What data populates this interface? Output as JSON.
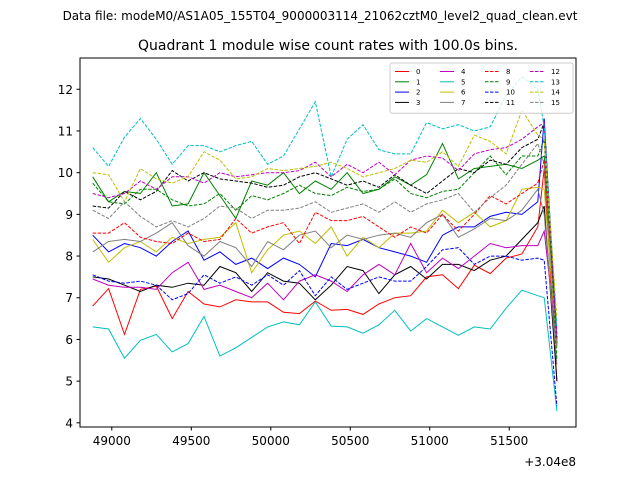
{
  "suptitle": "Data file: modeM0/AS1A05_155T04_9000003114_21062cztM0_level2_quad_clean.evt",
  "chart_data": {
    "type": "line",
    "title": "Quadrant 1 module wise count rates with 100.0s bins.",
    "xlabel": "",
    "ylabel": "",
    "x_offset_label": "+3.04e8",
    "xlim": [
      48800,
      51920
    ],
    "ylim": [
      3.9,
      12.75
    ],
    "xticks": [
      49000,
      49500,
      50000,
      50500,
      51000,
      51500
    ],
    "yticks": [
      4,
      5,
      6,
      7,
      8,
      9,
      10,
      11,
      12
    ],
    "grid": false,
    "legend": {
      "position": "top-right",
      "columns": 4
    },
    "x": [
      48880,
      48980,
      49080,
      49180,
      49280,
      49380,
      49480,
      49580,
      49680,
      49780,
      49880,
      49980,
      50080,
      50180,
      50280,
      50380,
      50480,
      50580,
      50680,
      50780,
      50880,
      50980,
      51080,
      51180,
      51280,
      51380,
      51480,
      51580,
      51680,
      51720,
      51800
    ],
    "series": [
      {
        "name": "0",
        "color": "#ff0000",
        "dash": "solid",
        "values": [
          6.8,
          7.22,
          6.12,
          7.2,
          7.28,
          6.5,
          7.15,
          6.85,
          6.78,
          6.95,
          6.9,
          6.9,
          6.65,
          6.62,
          6.92,
          6.7,
          6.72,
          6.6,
          6.85,
          7.0,
          7.05,
          7.5,
          7.55,
          7.22,
          7.78,
          7.58,
          7.95,
          8.05,
          8.7,
          10.1,
          5.0
        ]
      },
      {
        "name": "1",
        "color": "#008000",
        "dash": "solid",
        "values": [
          9.9,
          9.3,
          9.55,
          9.5,
          10.0,
          9.2,
          9.25,
          10.0,
          9.45,
          8.9,
          9.8,
          9.7,
          10.0,
          9.5,
          9.8,
          9.6,
          10.0,
          9.5,
          9.6,
          9.9,
          9.7,
          9.95,
          10.7,
          9.85,
          10.1,
          10.15,
          10.2,
          10.1,
          10.3,
          10.4,
          5.9
        ]
      },
      {
        "name": "2",
        "color": "#0000ff",
        "dash": "solid",
        "values": [
          8.5,
          8.1,
          8.3,
          8.2,
          8.0,
          8.35,
          8.6,
          7.9,
          8.1,
          7.8,
          7.95,
          7.7,
          7.95,
          7.8,
          7.5,
          8.3,
          8.25,
          8.4,
          8.2,
          8.1,
          8.0,
          7.85,
          8.5,
          8.7,
          8.7,
          8.95,
          9.05,
          9.0,
          9.3,
          11.3,
          5.9
        ]
      },
      {
        "name": "3",
        "color": "#000000",
        "dash": "solid",
        "values": [
          7.5,
          7.45,
          7.3,
          7.15,
          7.3,
          7.25,
          7.35,
          7.3,
          7.75,
          7.6,
          7.15,
          7.6,
          7.4,
          7.35,
          6.95,
          7.3,
          7.75,
          7.65,
          7.1,
          7.55,
          7.75,
          7.45,
          7.8,
          7.8,
          7.65,
          7.9,
          8.0,
          8.4,
          8.8,
          9.2,
          5.0
        ]
      },
      {
        "name": "4",
        "color": "#bf00bf",
        "dash": "solid",
        "values": [
          7.45,
          7.3,
          7.25,
          7.25,
          7.2,
          7.6,
          7.85,
          7.2,
          7.3,
          7.15,
          7.0,
          7.35,
          6.95,
          7.4,
          7.55,
          7.4,
          7.15,
          7.55,
          7.8,
          7.55,
          8.3,
          7.6,
          7.95,
          7.7,
          8.0,
          8.3,
          8.2,
          8.25,
          8.25,
          8.6,
          5.85
        ]
      },
      {
        "name": "5",
        "color": "#00bfbf",
        "dash": "solid",
        "values": [
          6.3,
          6.25,
          5.55,
          5.98,
          6.12,
          5.7,
          5.9,
          6.55,
          5.6,
          5.8,
          6.05,
          6.3,
          6.42,
          6.35,
          6.9,
          6.32,
          6.3,
          6.15,
          6.35,
          6.7,
          6.2,
          6.5,
          6.3,
          6.1,
          6.3,
          6.25,
          6.75,
          7.18,
          7.05,
          7.0,
          4.28
        ]
      },
      {
        "name": "6",
        "color": "#bfbf00",
        "dash": "solid",
        "values": [
          8.4,
          7.85,
          8.2,
          8.35,
          8.1,
          8.45,
          8.3,
          8.4,
          8.45,
          8.8,
          7.6,
          8.15,
          8.5,
          8.6,
          8.3,
          8.7,
          8.0,
          8.45,
          8.2,
          8.55,
          8.55,
          8.6,
          9.1,
          8.8,
          9.05,
          8.7,
          8.85,
          9.6,
          9.65,
          9.6,
          5.8
        ]
      },
      {
        "name": "7",
        "color": "#808080",
        "dash": "solid",
        "values": [
          8.1,
          8.35,
          8.4,
          8.35,
          8.55,
          8.8,
          8.25,
          8.0,
          8.35,
          8.2,
          7.75,
          8.35,
          8.15,
          8.5,
          8.6,
          8.2,
          8.5,
          8.4,
          8.5,
          8.55,
          8.45,
          8.8,
          9.0,
          8.45,
          8.65,
          8.9,
          8.85,
          9.1,
          9.6,
          9.0,
          5.4
        ]
      },
      {
        "name": "8",
        "color": "#ff0000",
        "dash": "dashed",
        "values": [
          8.55,
          8.55,
          8.8,
          8.45,
          8.35,
          8.3,
          8.55,
          8.35,
          8.4,
          8.9,
          8.55,
          8.7,
          8.8,
          8.3,
          9.05,
          8.85,
          8.85,
          8.95,
          8.7,
          8.45,
          8.7,
          8.55,
          9.0,
          8.6,
          9.0,
          9.45,
          9.25,
          9.5,
          9.75,
          10.3,
          6.0
        ]
      },
      {
        "name": "9",
        "color": "#008000",
        "dash": "dashed",
        "values": [
          9.75,
          9.3,
          9.25,
          9.6,
          9.6,
          9.35,
          9.2,
          9.25,
          9.5,
          9.1,
          9.45,
          9.35,
          9.5,
          9.7,
          9.5,
          9.45,
          9.65,
          9.55,
          9.6,
          9.85,
          9.5,
          9.4,
          9.55,
          9.6,
          10.0,
          10.4,
          9.95,
          10.4,
          10.4,
          10.8,
          5.5
        ]
      },
      {
        "name": "10",
        "color": "#0000ff",
        "dash": "dashed",
        "values": [
          7.55,
          7.4,
          7.35,
          7.4,
          7.3,
          6.95,
          7.1,
          7.55,
          7.35,
          7.5,
          7.3,
          7.55,
          7.3,
          7.65,
          7.05,
          7.5,
          7.2,
          7.35,
          7.5,
          7.4,
          7.4,
          7.75,
          8.15,
          8.2,
          7.8,
          8.0,
          8.0,
          7.9,
          7.95,
          7.9,
          4.4
        ]
      },
      {
        "name": "11",
        "color": "#000000",
        "dash": "dashed",
        "values": [
          9.2,
          9.15,
          9.55,
          9.35,
          9.55,
          10.05,
          9.8,
          10.0,
          9.85,
          9.8,
          9.75,
          9.65,
          9.7,
          9.9,
          10.0,
          9.85,
          9.7,
          9.8,
          9.65,
          9.95,
          9.7,
          9.5,
          9.8,
          10.1,
          10.0,
          10.3,
          10.2,
          10.6,
          10.8,
          11.2,
          6.05
        ]
      },
      {
        "name": "12",
        "color": "#bf00bf",
        "dash": "dashed",
        "values": [
          9.5,
          9.4,
          9.5,
          9.8,
          9.6,
          9.9,
          9.9,
          9.75,
          10.0,
          9.9,
          9.95,
          10.0,
          10.0,
          10.05,
          10.25,
          9.9,
          10.2,
          10.0,
          10.25,
          9.95,
          10.3,
          10.4,
          10.35,
          10.05,
          10.45,
          10.55,
          10.6,
          10.8,
          11.1,
          11.2,
          6.1
        ]
      },
      {
        "name": "13",
        "color": "#00bfbf",
        "dash": "dashed",
        "values": [
          10.6,
          10.15,
          10.85,
          11.3,
          10.8,
          10.2,
          10.65,
          10.65,
          10.5,
          10.65,
          10.75,
          10.2,
          10.4,
          11.05,
          11.7,
          9.9,
          10.8,
          11.15,
          10.55,
          10.45,
          10.45,
          11.2,
          11.05,
          11.15,
          11.0,
          11.1,
          11.85,
          12.3,
          12.0,
          11.1,
          6.3
        ]
      },
      {
        "name": "14",
        "color": "#bfbf00",
        "dash": "dashed",
        "values": [
          10.0,
          9.95,
          9.3,
          10.1,
          9.85,
          9.75,
          9.9,
          10.5,
          10.3,
          9.85,
          9.9,
          10.1,
          10.05,
          10.1,
          10.15,
          10.25,
          10.1,
          9.9,
          10.0,
          10.1,
          10.3,
          10.25,
          10.5,
          10.15,
          10.9,
          10.75,
          10.45,
          11.5,
          10.9,
          10.8,
          6.5
        ]
      },
      {
        "name": "15",
        "color": "#808080",
        "dash": "dashed",
        "values": [
          9.1,
          8.9,
          9.3,
          8.95,
          8.7,
          8.85,
          8.7,
          8.9,
          9.2,
          9.15,
          8.9,
          9.1,
          9.1,
          9.15,
          9.3,
          9.05,
          9.15,
          9.25,
          9.05,
          9.3,
          9.05,
          9.25,
          9.35,
          9.5,
          9.05,
          9.4,
          9.7,
          10.2,
          10.7,
          10.2,
          5.8
        ]
      }
    ]
  }
}
